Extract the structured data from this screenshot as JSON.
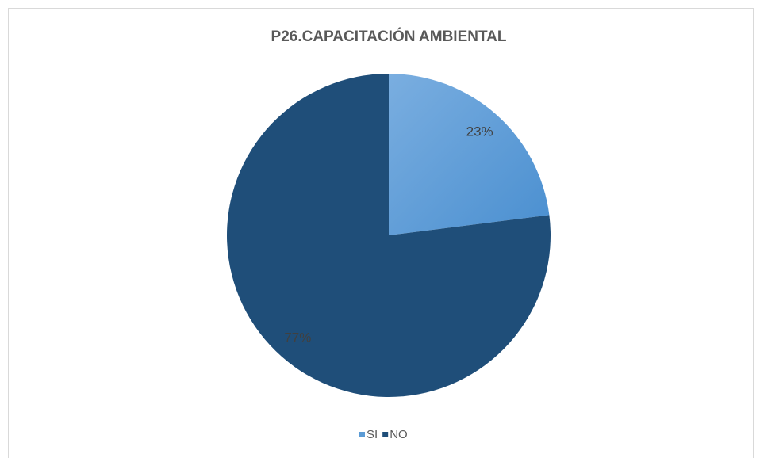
{
  "chart_data": {
    "type": "pie",
    "title": "P26.CAPACITACIÓN AMBIENTAL",
    "categories": [
      "SI",
      "NO"
    ],
    "values": [
      23,
      77
    ],
    "value_labels": [
      "23%",
      "77%"
    ],
    "colors": [
      "#5b9bd5",
      "#1f4e79"
    ],
    "legend": "bottom"
  }
}
